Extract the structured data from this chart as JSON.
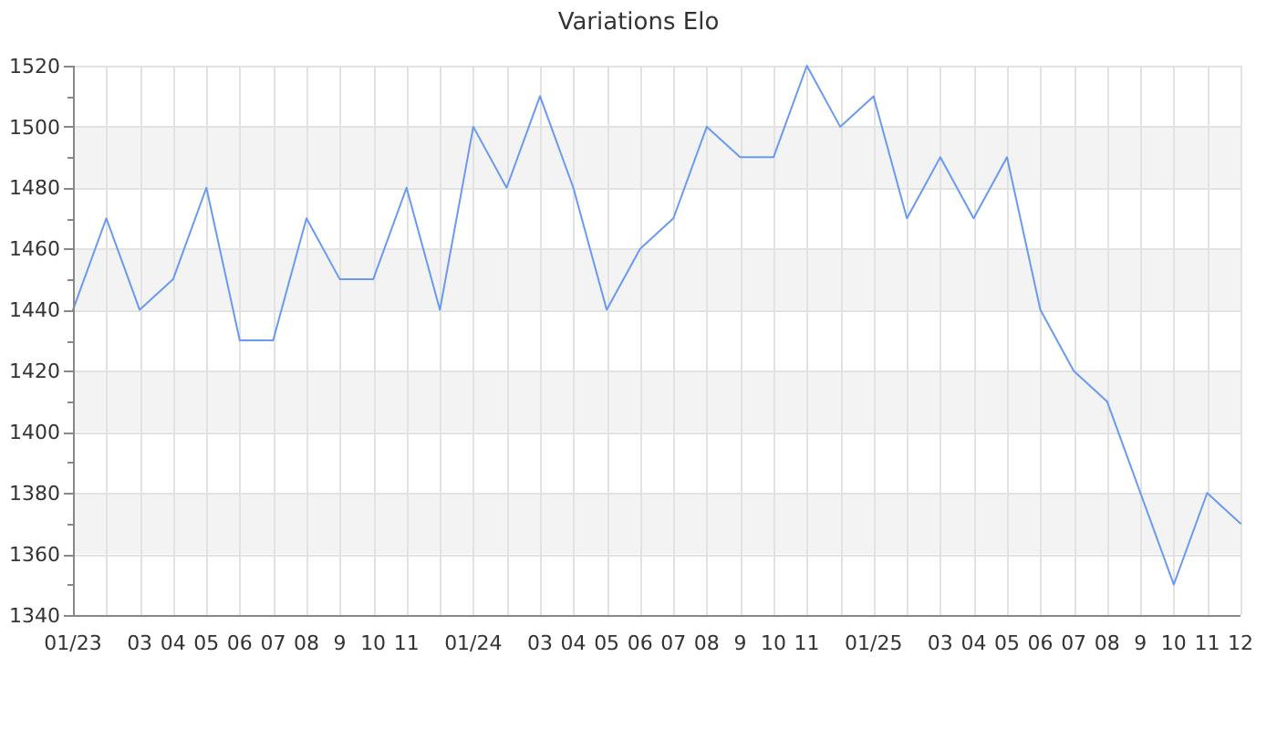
{
  "chart_data": {
    "type": "line",
    "title": "Variations Elo",
    "categories": [
      "01/23",
      null,
      "03",
      "04",
      "05",
      "06",
      "07",
      "08",
      "9",
      "10",
      "11",
      null,
      "01/24",
      null,
      "03",
      "04",
      "05",
      "06",
      "07",
      "08",
      "9",
      "10",
      "11",
      null,
      "01/25",
      null,
      "03",
      "04",
      "05",
      "06",
      "07",
      "08",
      "9",
      "10",
      "11",
      "12"
    ],
    "series": [
      {
        "color": "#6a9af0",
        "values": [
          1440,
          1470,
          1440,
          1450,
          1480,
          1430,
          1430,
          1470,
          1450,
          1450,
          1480,
          1440,
          1500,
          1480,
          1510,
          1480,
          1440,
          1460,
          1470,
          1500,
          1490,
          1490,
          1520,
          1500,
          1510,
          1470,
          1490,
          1470,
          1490,
          1440,
          1420,
          1410,
          1380,
          1350,
          1380,
          1370
        ]
      }
    ],
    "ylim": [
      1340,
      1520
    ],
    "yticks": [
      1340,
      {
        "value": 1350,
        "label": null
      },
      1360,
      {
        "value": 1370,
        "label": null
      },
      1380,
      {
        "value": 1390,
        "label": null
      },
      1400,
      {
        "value": 1410,
        "label": null
      },
      1420,
      {
        "value": 1430,
        "label": null
      },
      1440,
      {
        "value": 1450,
        "label": null
      },
      1460,
      {
        "value": 1470,
        "label": null
      },
      1480,
      {
        "value": 1490,
        "label": null
      },
      1500,
      {
        "value": 1510,
        "label": null
      },
      1520
    ],
    "grid": true
  }
}
